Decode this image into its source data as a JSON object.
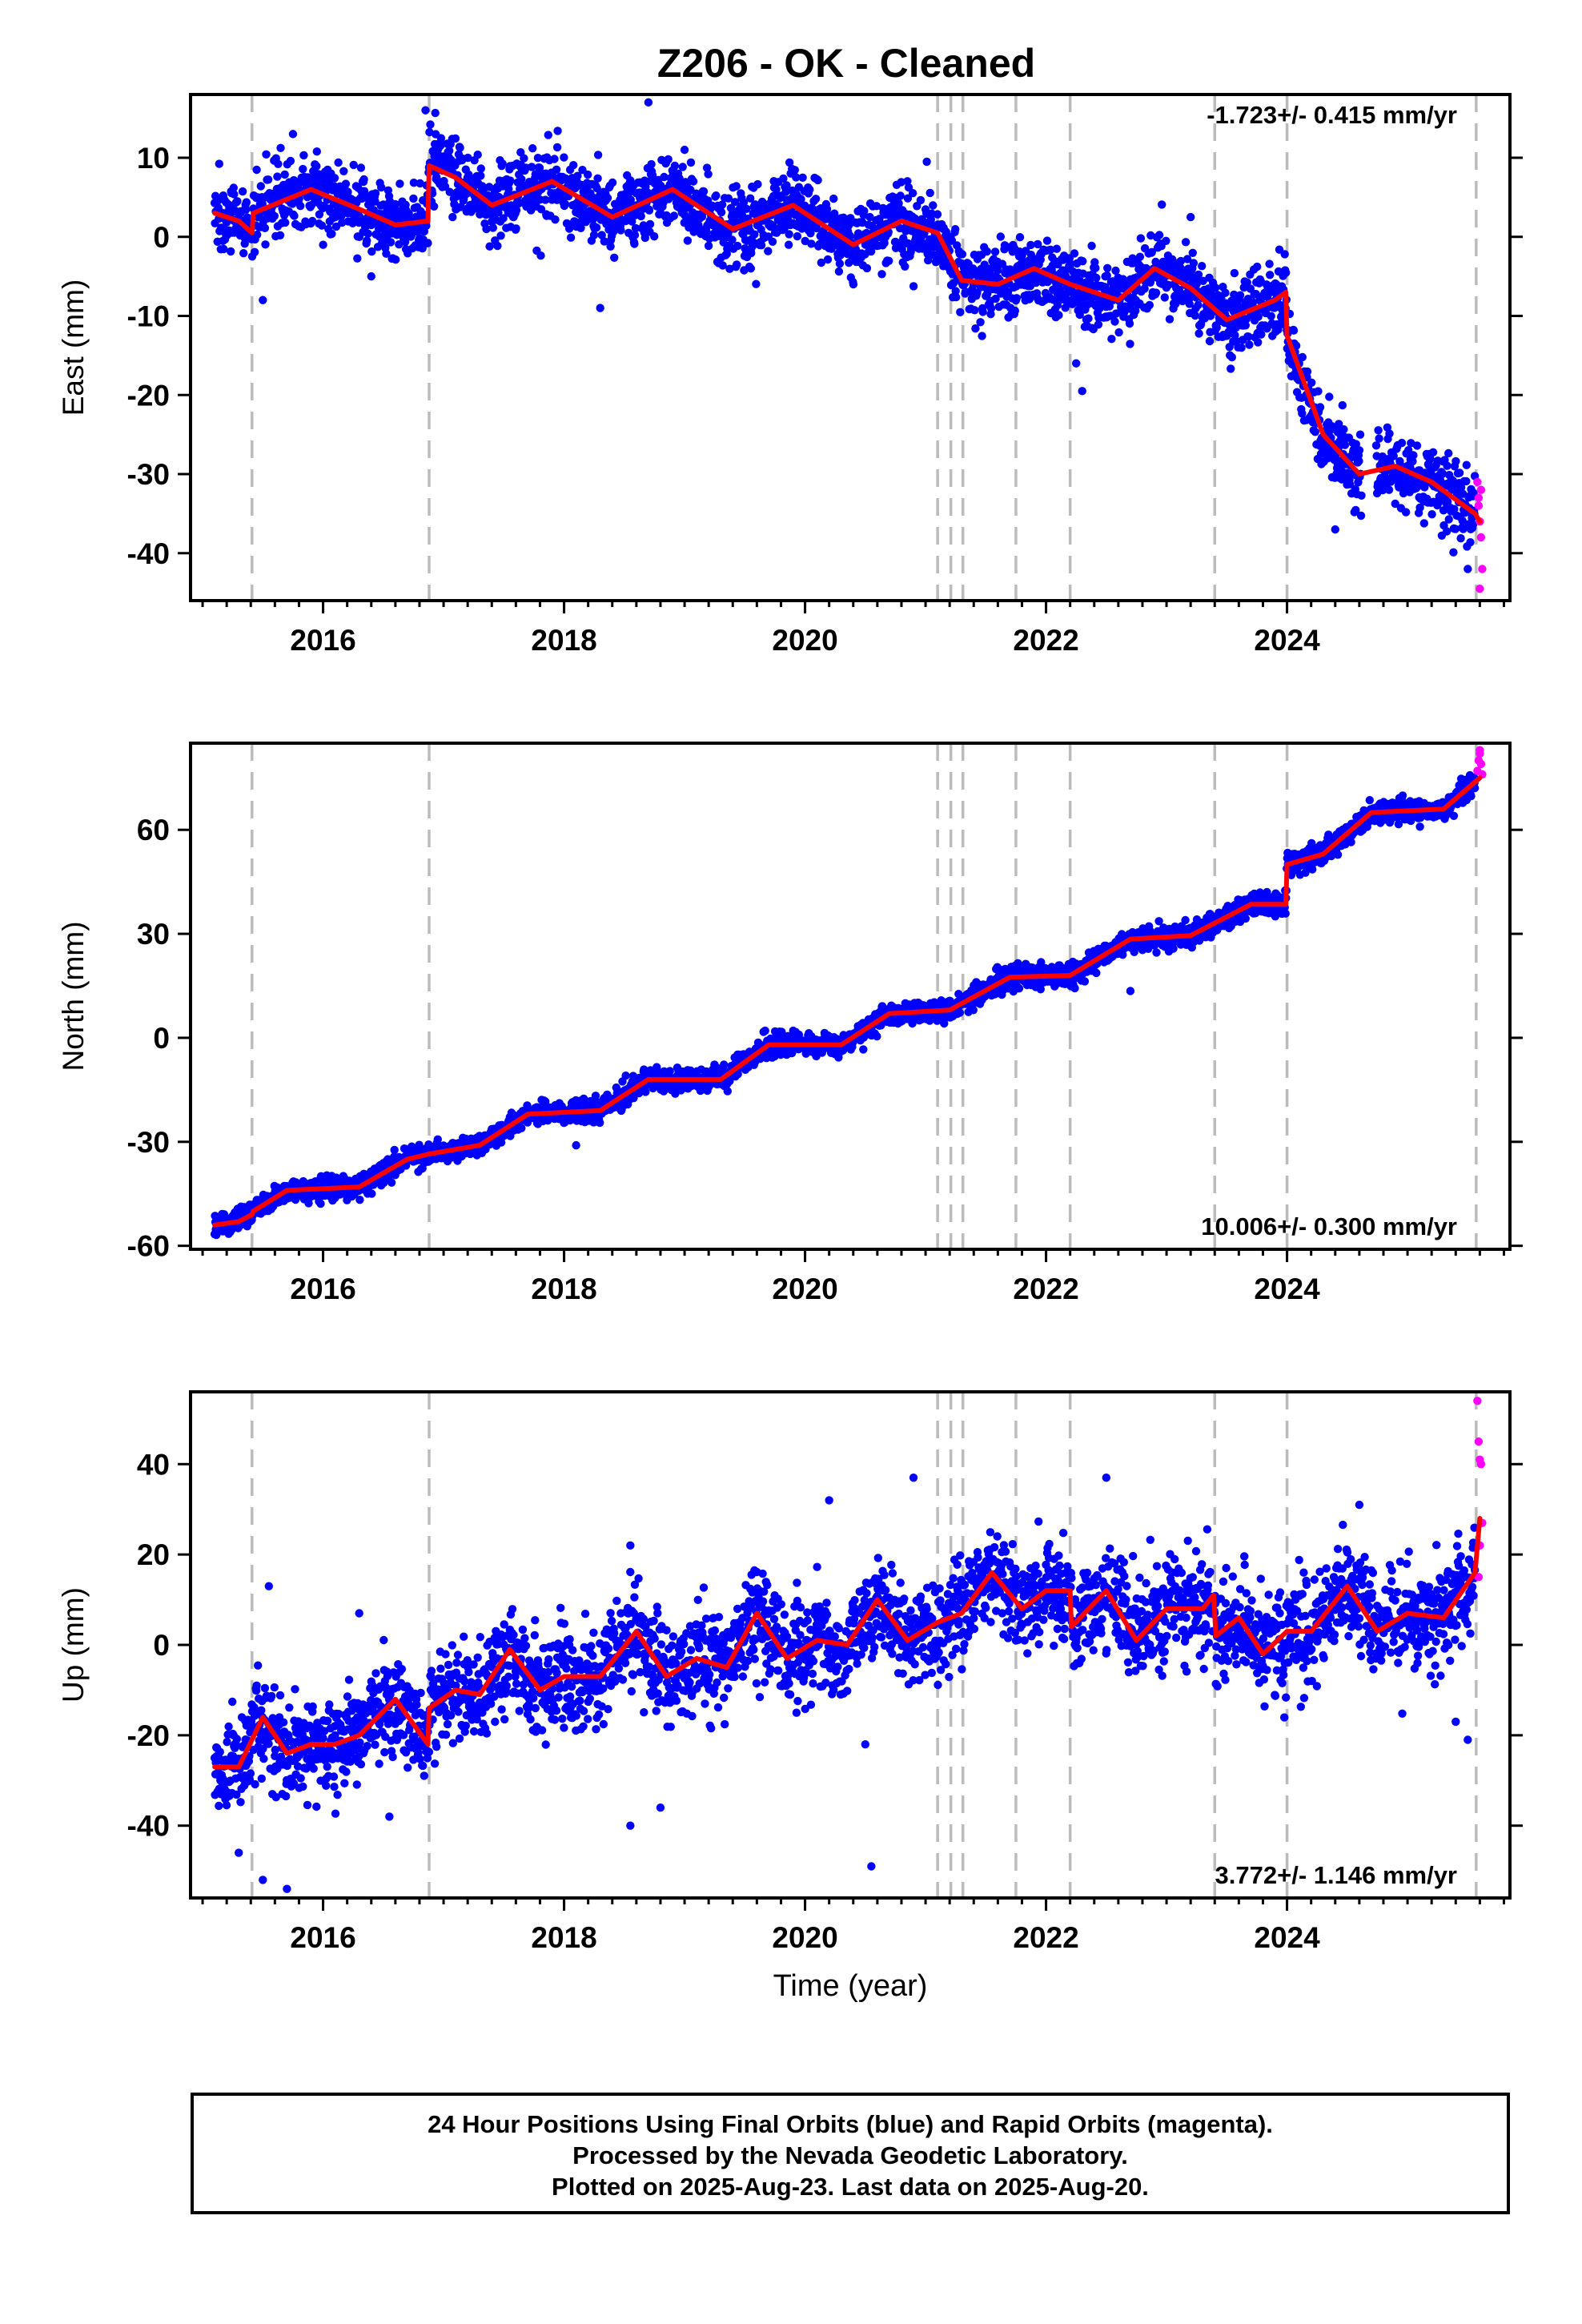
{
  "title": "Z206  - OK - Cleaned",
  "colors": {
    "final_orbits": "#0000ff",
    "rapid_orbits": "#ff00ff",
    "model": "#ff0000",
    "event_lines": "#bbbbbb",
    "frame": "#000000"
  },
  "x_axis": {
    "label": "Time (year)",
    "range": [
      2014.9,
      2025.85
    ],
    "ticks": [
      "2016",
      "2018",
      "2020",
      "2022",
      "2024"
    ],
    "minor_tick_step_years": 0.2
  },
  "event_lines_years": [
    2015.41,
    2016.88,
    2021.1,
    2021.21,
    2021.31,
    2021.75,
    2022.2,
    2023.4,
    2024.0,
    2025.57
  ],
  "footer": {
    "line1": "24 Hour Positions Using Final Orbits (blue) and Rapid Orbits (magenta).",
    "line2": "Processed by the Nevada Geodetic Laboratory.",
    "line3": "Plotted on 2025-Aug-23. Last data on 2025-Aug-20."
  },
  "chart_data": [
    {
      "type": "scatter",
      "component": "East",
      "ylabel": "East (mm)",
      "ylim": [
        -46,
        18
      ],
      "yticks": [
        10,
        0,
        -10,
        -20,
        -30,
        -40
      ],
      "rate_label": "-1.723+/- 0.415 mm/yr",
      "rate_position": "top-right",
      "noise_mm": 2.3,
      "model_trend": {
        "x": [
          2015.1,
          2015.3,
          2015.41,
          2015.42,
          2015.9,
          2016.3,
          2016.6,
          2016.87,
          2016.88,
          2017.1,
          2017.4,
          2017.9,
          2018.4,
          2018.9,
          2019.4,
          2019.9,
          2020.4,
          2020.8,
          2021.1,
          2021.3,
          2021.6,
          2021.9,
          2022.2,
          2022.6,
          2022.9,
          2023.2,
          2023.5,
          2023.9,
          2023.99,
          2024.0,
          2024.3,
          2024.6,
          2024.9,
          2025.2,
          2025.56,
          2025.6
        ],
        "y": [
          3.0,
          2.0,
          0.5,
          3.0,
          6.0,
          3.5,
          1.5,
          2.0,
          9.0,
          7.5,
          4.0,
          7.0,
          2.5,
          6.0,
          1.0,
          4.0,
          -1.0,
          2.0,
          0.5,
          -5.5,
          -6.0,
          -4.0,
          -6.0,
          -8.0,
          -4.0,
          -6.5,
          -10.5,
          -8.0,
          -7.0,
          -12.5,
          -25.0,
          -30.0,
          -29.0,
          -31.0,
          -35.0,
          -36.0
        ]
      },
      "final_orbit_outliers": [
        [
          2015.5,
          -8
        ],
        [
          2015.75,
          13
        ],
        [
          2016.4,
          -5
        ],
        [
          2016.85,
          16
        ],
        [
          2018.3,
          -9
        ],
        [
          2018.7,
          17
        ],
        [
          2019.0,
          11
        ],
        [
          2019.55,
          -4
        ],
        [
          2022.25,
          -16
        ],
        [
          2022.3,
          -19.5
        ],
        [
          2023.2,
          2.5
        ],
        [
          2024.4,
          -37
        ],
        [
          2025.5,
          -42
        ]
      ],
      "rapid_orbits": {
        "x": [
          2025.58,
          2025.59,
          2025.6,
          2025.61,
          2025.62,
          2025.6,
          2025.59,
          2025.61
        ],
        "y": [
          -31,
          -33,
          -36,
          -38,
          -42,
          -44.5,
          -34,
          -32
        ]
      }
    },
    {
      "type": "scatter",
      "component": "North",
      "ylabel": "North (mm)",
      "ylim": [
        -61,
        85
      ],
      "yticks": [
        60,
        30,
        0,
        -30,
        -60
      ],
      "rate_label": "10.006+/- 0.300 mm/yr",
      "rate_position": "bottom-right",
      "noise_mm": 1.6,
      "model_trend": {
        "x": [
          2015.1,
          2015.3,
          2015.41,
          2015.42,
          2015.7,
          2016.3,
          2016.7,
          2016.88,
          2017.3,
          2017.7,
          2018.3,
          2018.7,
          2019.3,
          2019.7,
          2020.3,
          2020.7,
          2021.2,
          2021.7,
          2022.2,
          2022.7,
          2023.2,
          2023.7,
          2023.99,
          2024.0,
          2024.3,
          2024.7,
          2025.3,
          2025.6
        ],
        "y": [
          -54,
          -53,
          -51,
          -50,
          -44,
          -43,
          -35,
          -33.5,
          -31,
          -22,
          -21,
          -12,
          -12,
          -2,
          -2,
          7,
          8,
          17.5,
          18,
          28.5,
          29.5,
          38.5,
          38.5,
          50,
          53,
          65,
          66,
          75
        ]
      },
      "final_orbit_outliers": [
        [
          2016.2,
          -46
        ],
        [
          2018.1,
          -31
        ],
        [
          2022.7,
          13.5
        ]
      ],
      "rapid_orbits": {
        "x": [
          2025.58,
          2025.59,
          2025.6,
          2025.61,
          2025.62,
          2025.6
        ],
        "y": [
          77,
          80,
          83,
          79,
          76,
          82
        ]
      }
    },
    {
      "type": "scatter",
      "component": "Up",
      "ylabel": "Up (mm)",
      "ylim": [
        -56,
        56
      ],
      "yticks": [
        40,
        20,
        0,
        -20,
        -40
      ],
      "rate_label": "3.772+/- 1.146 mm/yr",
      "rate_position": "bottom-right",
      "noise_mm": 5.5,
      "model_trend": {
        "x": [
          2015.1,
          2015.3,
          2015.5,
          2015.7,
          2015.9,
          2016.1,
          2016.3,
          2016.6,
          2016.87,
          2016.88,
          2017.1,
          2017.3,
          2017.55,
          2017.8,
          2018.0,
          2018.3,
          2018.6,
          2018.85,
          2019.1,
          2019.35,
          2019.6,
          2019.85,
          2020.1,
          2020.35,
          2020.6,
          2020.85,
          2021.1,
          2021.3,
          2021.55,
          2021.8,
          2022.0,
          2022.2,
          2022.21,
          2022.5,
          2022.75,
          2023.0,
          2023.3,
          2023.39,
          2023.41,
          2023.6,
          2023.8,
          2024.0,
          2024.2,
          2024.5,
          2024.75,
          2025.0,
          2025.3,
          2025.56,
          2025.6
        ],
        "y": [
          -27,
          -27,
          -16,
          -24,
          -22,
          -22,
          -20,
          -12,
          -22,
          -14,
          -10,
          -11,
          -1,
          -10,
          -7,
          -7,
          3,
          -7,
          -3,
          -5,
          7,
          -3,
          1,
          0,
          10,
          1,
          5,
          7,
          16,
          8,
          12,
          12,
          4,
          12,
          1,
          8,
          8,
          11,
          2,
          6,
          -2,
          3,
          3,
          13,
          3,
          7,
          6,
          16,
          28
        ]
      },
      "final_orbit_outliers": [
        [
          2015.3,
          -46
        ],
        [
          2015.5,
          -52
        ],
        [
          2015.55,
          13
        ],
        [
          2015.7,
          -54
        ],
        [
          2016.3,
          7
        ],
        [
          2016.55,
          -38
        ],
        [
          2018.55,
          22
        ],
        [
          2018.55,
          -40
        ],
        [
          2018.8,
          -36
        ],
        [
          2020.2,
          32
        ],
        [
          2020.5,
          -22
        ],
        [
          2020.55,
          -49
        ],
        [
          2020.9,
          37
        ],
        [
          2022.5,
          37
        ],
        [
          2024.6,
          31
        ],
        [
          2025.4,
          -17
        ],
        [
          2025.5,
          -21
        ]
      ],
      "rapid_orbits": {
        "x": [
          2025.58,
          2025.59,
          2025.6,
          2025.61,
          2025.62,
          2025.6,
          2025.59
        ],
        "y": [
          54,
          45,
          41,
          40,
          27,
          22,
          15
        ]
      }
    }
  ]
}
